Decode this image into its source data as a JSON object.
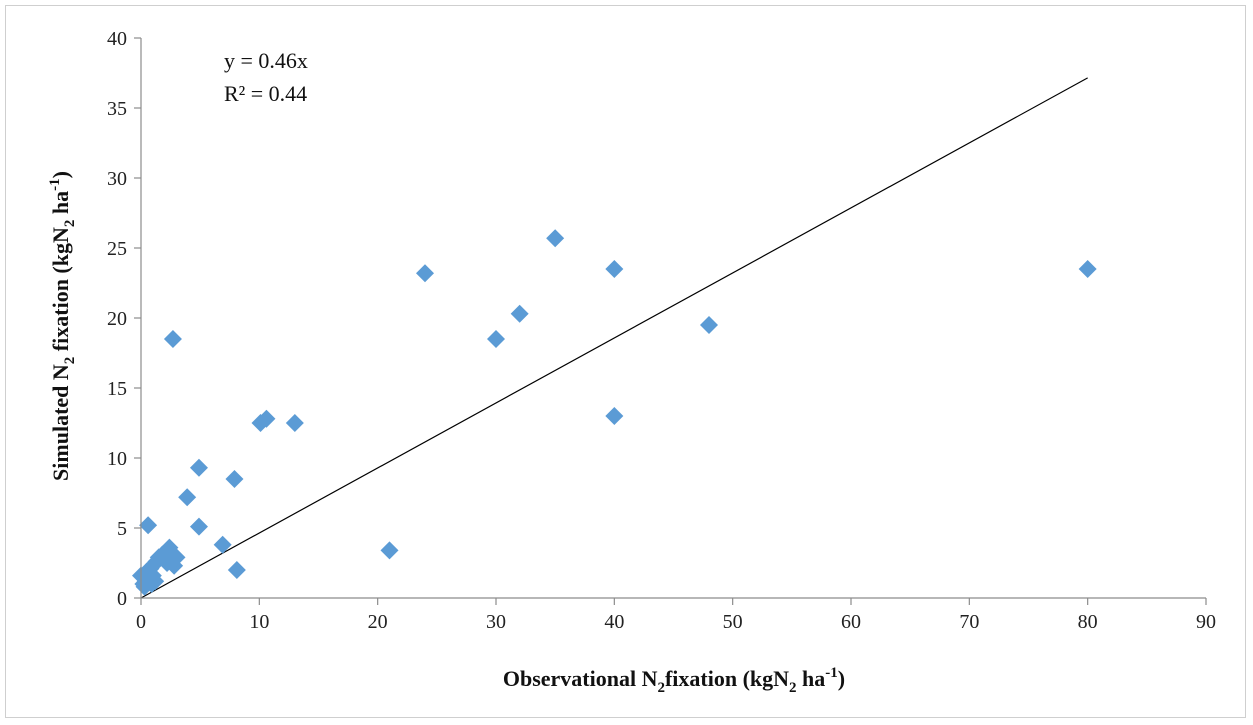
{
  "chart_data": {
    "type": "scatter",
    "x_axis": {
      "label_main": "Observational N",
      "label_sub": "2",
      "label_rest": "fixation (kgN",
      "label_sub2": "2",
      "label_unit": " ha",
      "label_sup": "-1",
      "label_close": ")",
      "range": [
        0,
        90
      ],
      "ticks": [
        0,
        10,
        20,
        30,
        40,
        50,
        60,
        70,
        80,
        90
      ]
    },
    "y_axis": {
      "label_main": "Simulated N",
      "label_sub": "2",
      "label_rest": " fixation (kgN",
      "label_sub2": "2",
      "label_unit": " ha",
      "label_sup": "-1",
      "label_close": ")",
      "range": [
        0,
        40
      ],
      "ticks": [
        0,
        5,
        10,
        15,
        20,
        25,
        30,
        35,
        40
      ]
    },
    "annotations": {
      "equation": "y = 0.46x",
      "r_squared": "R² = 0.44"
    },
    "trendline": {
      "slope": 0.4644,
      "intercept": 0,
      "x_start": 0,
      "x_end": 80
    },
    "marker": {
      "shape": "diamond",
      "color": "#5B9BD5"
    },
    "line_color": "#000000",
    "grid": false,
    "points": [
      {
        "x": 0.0,
        "y": 1.6
      },
      {
        "x": 0.2,
        "y": 1.0
      },
      {
        "x": 0.3,
        "y": 0.8
      },
      {
        "x": 0.4,
        "y": 1.2
      },
      {
        "x": 0.5,
        "y": 1.9
      },
      {
        "x": 0.6,
        "y": 5.2
      },
      {
        "x": 0.7,
        "y": 1.4
      },
      {
        "x": 0.8,
        "y": 2.1
      },
      {
        "x": 0.9,
        "y": 1.0
      },
      {
        "x": 1.0,
        "y": 1.6
      },
      {
        "x": 1.1,
        "y": 2.4
      },
      {
        "x": 1.2,
        "y": 1.2
      },
      {
        "x": 1.3,
        "y": 2.6
      },
      {
        "x": 1.5,
        "y": 2.9
      },
      {
        "x": 1.8,
        "y": 3.1
      },
      {
        "x": 2.0,
        "y": 2.7
      },
      {
        "x": 2.2,
        "y": 2.5
      },
      {
        "x": 2.4,
        "y": 3.6
      },
      {
        "x": 2.6,
        "y": 3.0
      },
      {
        "x": 2.8,
        "y": 2.3
      },
      {
        "x": 3.0,
        "y": 2.9
      },
      {
        "x": 2.7,
        "y": 18.5
      },
      {
        "x": 3.9,
        "y": 7.2
      },
      {
        "x": 4.9,
        "y": 9.3
      },
      {
        "x": 4.9,
        "y": 5.1
      },
      {
        "x": 6.9,
        "y": 3.8
      },
      {
        "x": 7.9,
        "y": 8.5
      },
      {
        "x": 8.1,
        "y": 2.0
      },
      {
        "x": 10.1,
        "y": 12.5
      },
      {
        "x": 10.6,
        "y": 12.8
      },
      {
        "x": 13.0,
        "y": 12.5
      },
      {
        "x": 21.0,
        "y": 3.4
      },
      {
        "x": 24.0,
        "y": 23.2
      },
      {
        "x": 30.0,
        "y": 18.5
      },
      {
        "x": 32.0,
        "y": 20.3
      },
      {
        "x": 35.0,
        "y": 25.7
      },
      {
        "x": 40.0,
        "y": 23.5
      },
      {
        "x": 40.0,
        "y": 13.0
      },
      {
        "x": 48.0,
        "y": 19.5
      },
      {
        "x": 80.0,
        "y": 23.5
      }
    ]
  }
}
